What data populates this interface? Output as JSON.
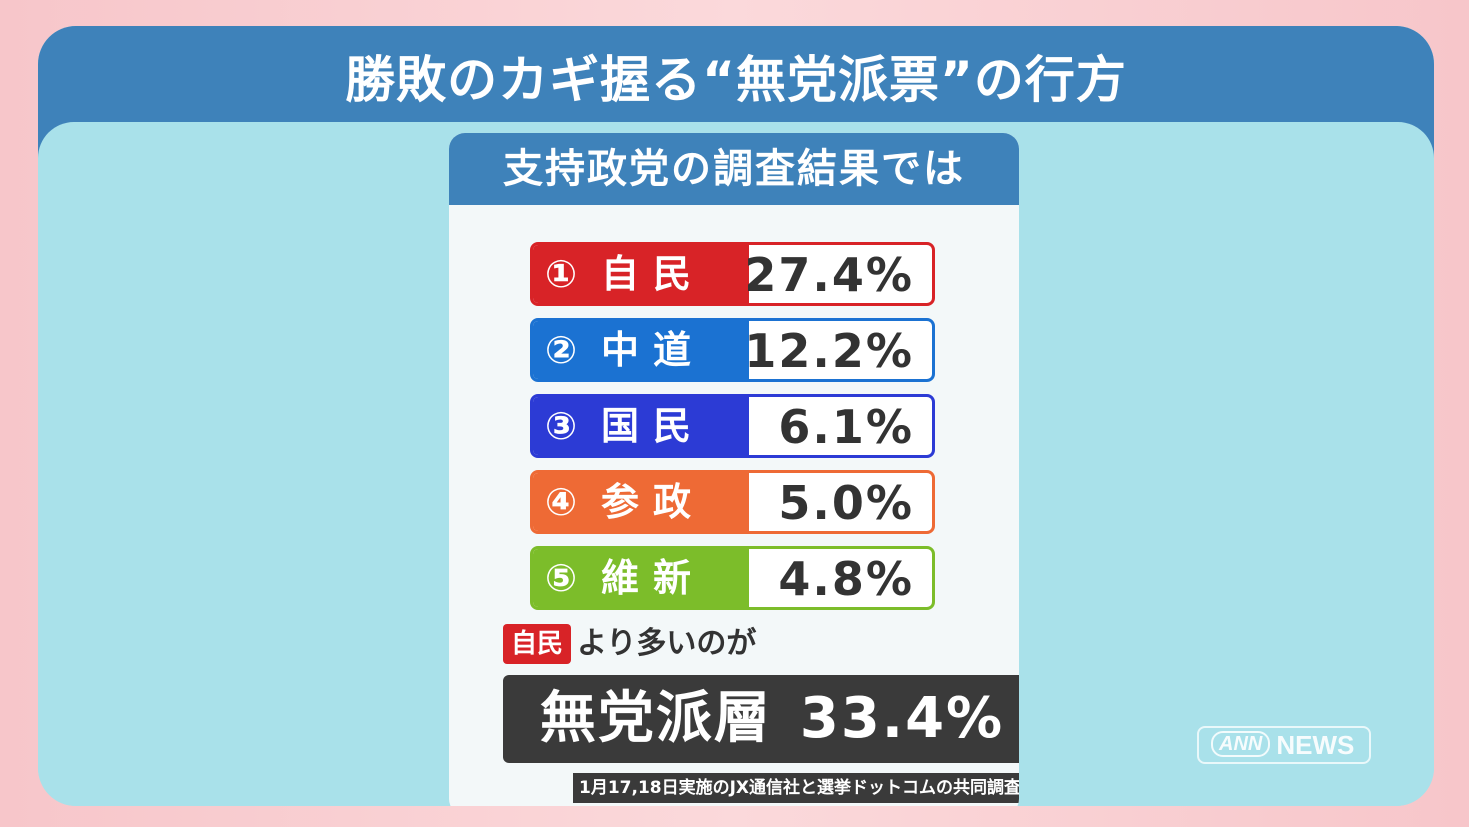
{
  "header": {
    "title": "勝敗のカギ握る“無党派票”の行方"
  },
  "card": {
    "title": "支持政党の調査結果では",
    "rows": [
      {
        "rank": "①",
        "party": "自民",
        "value": "27.4%",
        "color": "#d82327"
      },
      {
        "rank": "②",
        "party": "中道",
        "value": "12.2%",
        "color": "#1b72d2"
      },
      {
        "rank": "③",
        "party": "国民",
        "value": "6.1%",
        "color": "#2c3bd5"
      },
      {
        "rank": "④",
        "party": "参政",
        "value": "5.0%",
        "color": "#ee6a35"
      },
      {
        "rank": "⑤",
        "party": "維新",
        "value": "4.8%",
        "color": "#7cbd2a"
      }
    ],
    "note": {
      "badge": "自民",
      "text": "より多いのが"
    },
    "highlight": {
      "label": "無党派層",
      "value": "33.4%"
    },
    "source": "1月17,18日実施のJX通信社と選挙ドットコムの共同調査"
  },
  "logo": {
    "ann": "ANN",
    "news": "NEWS"
  }
}
